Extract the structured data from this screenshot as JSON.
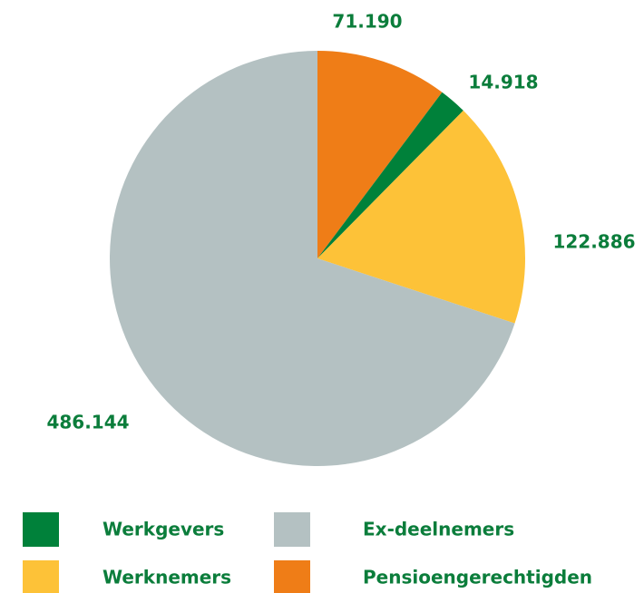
{
  "chart_data": {
    "type": "pie",
    "categories": [
      "Pensioengerechtigden",
      "Werkgevers",
      "Werknemers",
      "Ex-deelnemers"
    ],
    "values": [
      71190,
      14918,
      122886,
      486144
    ],
    "value_labels": [
      "71.190",
      "14.918",
      "122.886",
      "486.144"
    ],
    "colors": [
      "#ef7d17",
      "#00813a",
      "#fdc238",
      "#b4c1c2"
    ]
  }
}
